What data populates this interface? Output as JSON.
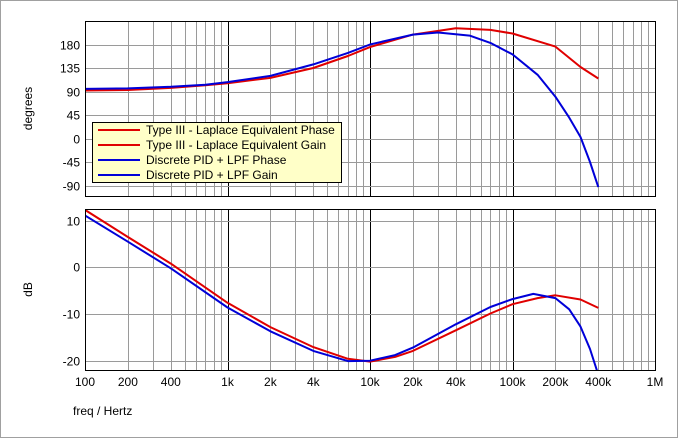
{
  "chart_data": {
    "type": "line",
    "xlabel": "freq / Hertz",
    "x_scale": "log",
    "xlim": [
      100,
      1000000
    ],
    "x_ticks": [
      {
        "value": 100,
        "label": "100"
      },
      {
        "value": 200,
        "label": "200"
      },
      {
        "value": 400,
        "label": "400"
      },
      {
        "value": 1000,
        "label": "1k"
      },
      {
        "value": 2000,
        "label": "2k"
      },
      {
        "value": 4000,
        "label": "4k"
      },
      {
        "value": 10000,
        "label": "10k"
      },
      {
        "value": 20000,
        "label": "20k"
      },
      {
        "value": 40000,
        "label": "40k"
      },
      {
        "value": 100000,
        "label": "100k"
      },
      {
        "value": 200000,
        "label": "200k"
      },
      {
        "value": 400000,
        "label": "400k"
      },
      {
        "value": 1000000,
        "label": "1M"
      }
    ],
    "grid": true,
    "legend_position": "inside-left of top panel",
    "colors": {
      "red": "#e00000",
      "blue": "#0000d8"
    },
    "panels": [
      {
        "id": "phase",
        "ylabel": "degrees",
        "ylim": [
          -110,
          225
        ],
        "y_ticks": [
          {
            "value": 180,
            "label": "180"
          },
          {
            "value": 135,
            "label": "135"
          },
          {
            "value": 90,
            "label": "90"
          },
          {
            "value": 45,
            "label": "45"
          },
          {
            "value": 0,
            "label": "0"
          },
          {
            "value": -45,
            "label": "-45"
          },
          {
            "value": -90,
            "label": "-90"
          }
        ],
        "series": [
          {
            "name": "Type III - Laplace Equivalent Phase",
            "color": "#e00000",
            "points": [
              [
                100,
                92
              ],
              [
                200,
                93
              ],
              [
                400,
                97
              ],
              [
                700,
                102
              ],
              [
                1000,
                106
              ],
              [
                2000,
                116
              ],
              [
                4000,
                135
              ],
              [
                7000,
                158
              ],
              [
                10000,
                175
              ],
              [
                20000,
                199
              ],
              [
                40000,
                211
              ],
              [
                70000,
                208
              ],
              [
                100000,
                201
              ],
              [
                200000,
                176
              ],
              [
                300000,
                137
              ],
              [
                400000,
                115
              ]
            ]
          },
          {
            "name": "Discrete PID + LPF Phase",
            "color": "#0000d8",
            "points": [
              [
                100,
                95
              ],
              [
                200,
                96
              ],
              [
                400,
                99
              ],
              [
                700,
                103
              ],
              [
                1000,
                108
              ],
              [
                2000,
                120
              ],
              [
                4000,
                142
              ],
              [
                7000,
                164
              ],
              [
                10000,
                180
              ],
              [
                20000,
                199
              ],
              [
                30000,
                203
              ],
              [
                50000,
                197
              ],
              [
                70000,
                183
              ],
              [
                100000,
                161
              ],
              [
                150000,
                122
              ],
              [
                200000,
                80
              ],
              [
                250000,
                40
              ],
              [
                300000,
                3
              ],
              [
                350000,
                -45
              ],
              [
                400000,
                -93
              ]
            ]
          }
        ]
      },
      {
        "id": "gain",
        "ylabel": "dB",
        "ylim": [
          -22,
          12.5
        ],
        "y_ticks": [
          {
            "value": 10,
            "label": "10"
          },
          {
            "value": 0,
            "label": "0"
          },
          {
            "value": -10,
            "label": "-10"
          },
          {
            "value": -20,
            "label": "-20"
          }
        ],
        "series": [
          {
            "name": "Type III - Laplace Equivalent Gain",
            "color": "#e00000",
            "points": [
              [
                100,
                12.3
              ],
              [
                200,
                6.5
              ],
              [
                400,
                0.8
              ],
              [
                1000,
                -7.6
              ],
              [
                2000,
                -12.8
              ],
              [
                4000,
                -17.1
              ],
              [
                7000,
                -19.6
              ],
              [
                10000,
                -20.2
              ],
              [
                15000,
                -19.2
              ],
              [
                20000,
                -17.9
              ],
              [
                40000,
                -13.5
              ],
              [
                70000,
                -9.9
              ],
              [
                100000,
                -7.9
              ],
              [
                150000,
                -6.6
              ],
              [
                200000,
                -6
              ],
              [
                300000,
                -6.9
              ],
              [
                400000,
                -8.7
              ]
            ]
          },
          {
            "name": "Discrete PID + LPF Gain",
            "color": "#0000d8",
            "points": [
              [
                100,
                11.1
              ],
              [
                200,
                5.5
              ],
              [
                400,
                -0.2
              ],
              [
                1000,
                -8.6
              ],
              [
                2000,
                -13.7
              ],
              [
                4000,
                -17.9
              ],
              [
                7000,
                -20.1
              ],
              [
                10000,
                -20
              ],
              [
                15000,
                -18.8
              ],
              [
                20000,
                -17.2
              ],
              [
                40000,
                -12.2
              ],
              [
                70000,
                -8.5
              ],
              [
                100000,
                -6.8
              ],
              [
                140000,
                -5.7
              ],
              [
                200000,
                -6.6
              ],
              [
                250000,
                -9
              ],
              [
                300000,
                -12.7
              ],
              [
                350000,
                -17.5
              ],
              [
                400000,
                -23
              ]
            ]
          }
        ]
      }
    ],
    "legend": [
      {
        "label": "Type III - Laplace Equivalent Phase",
        "color": "#e00000"
      },
      {
        "label": "Type III - Laplace Equivalent Gain",
        "color": "#e00000"
      },
      {
        "label": "Discrete PID + LPF Phase",
        "color": "#0000d8"
      },
      {
        "label": "Discrete PID + LPF Gain",
        "color": "#0000d8"
      }
    ]
  }
}
